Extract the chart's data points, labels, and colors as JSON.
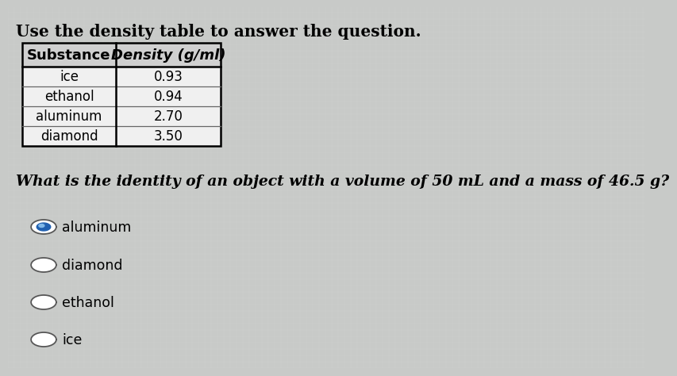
{
  "title": "Use the density table to answer the question.",
  "table_headers": [
    "Substance",
    "Density (g/ml)"
  ],
  "table_rows": [
    [
      "ice",
      "0.93"
    ],
    [
      "ethanol",
      "0.94"
    ],
    [
      "aluminum",
      "2.70"
    ],
    [
      "diamond",
      "3.50"
    ]
  ],
  "question": "What is the identity of an object with a volume of 50 mL and a mass of 46.5 g?",
  "choices": [
    "aluminum",
    "diamond",
    "ethanol",
    "ice"
  ],
  "selected_index": 0,
  "bg_color": "#c8cac8",
  "table_bg": "#f0f0f0",
  "table_header_bg": "#d0d0d0",
  "text_color": "#000000",
  "title_fontsize": 14.5,
  "question_fontsize": 13.5,
  "choice_fontsize": 12.5,
  "table_fontsize": 12,
  "table_header_fontsize": 13
}
